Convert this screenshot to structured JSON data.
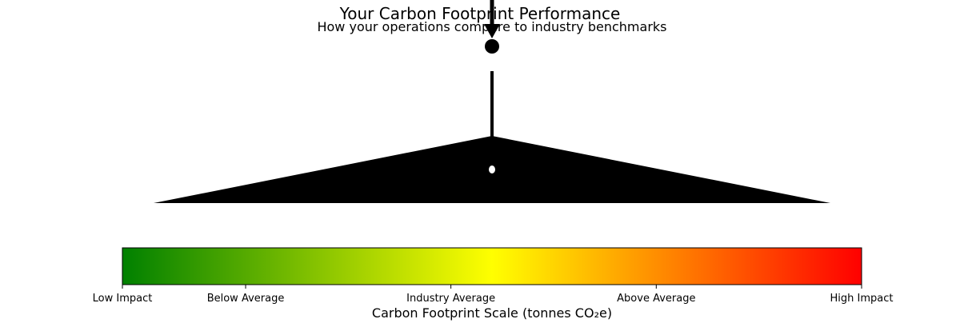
{
  "chart_data": {
    "type": "gauge",
    "title": "Your Carbon Footprint Performance",
    "subtitle": "How your operations compare to industry benchmarks",
    "xlabel": "Carbon Footprint Scale (tonnes CO₂e)",
    "scale": {
      "range": [
        0,
        1
      ],
      "colormap": [
        "#008000",
        "#FFFF00",
        "#FF0000"
      ],
      "ticks": [
        {
          "value": 0.0,
          "label": "Low Impact"
        },
        {
          "value": 0.1667,
          "label": "Below Average"
        },
        {
          "value": 0.4444,
          "label": "Industry Average"
        },
        {
          "value": 0.7222,
          "label": "Above Average"
        },
        {
          "value": 1.0,
          "label": "High Impact"
        }
      ]
    },
    "indicator_value": 0.5
  }
}
